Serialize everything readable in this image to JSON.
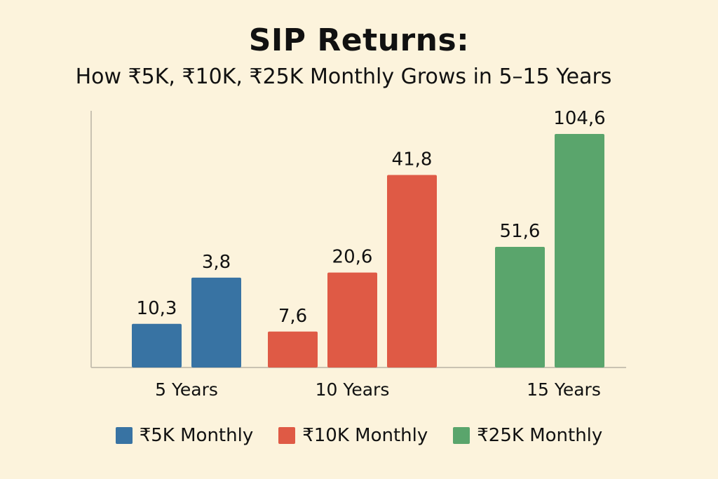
{
  "chart_data": {
    "type": "bar",
    "title": "SIP Returns:",
    "subtitle": "How ₹5K, ₹10K, ₹25K Monthly Grows in 5–15 Years",
    "categories": [
      "5 Years",
      "10 Years",
      "15 Years"
    ],
    "series": [
      {
        "name": "₹5K Monthly",
        "color": "#3873a3"
      },
      {
        "name": "₹10K Monthly",
        "color": "#df5a45"
      },
      {
        "name": "₹25K Monthly",
        "color": "#5aa56c"
      }
    ],
    "bars": [
      {
        "category": "5 Years",
        "series": "₹5K Monthly",
        "value": 17,
        "label": "10,3"
      },
      {
        "category": "5 Years",
        "series": "₹5K Monthly",
        "value": 35,
        "label": "3,8"
      },
      {
        "category": "10 Years",
        "series": "₹10K Monthly",
        "value": 14,
        "label": "7,6"
      },
      {
        "category": "10 Years",
        "series": "₹10K Monthly",
        "value": 37,
        "label": "20,6"
      },
      {
        "category": "10 Years",
        "series": "₹10K Monthly",
        "value": 75,
        "label": "41,8"
      },
      {
        "category": "15 Years",
        "series": "₹25K Monthly",
        "value": 47,
        "label": "51,6"
      },
      {
        "category": "15 Years",
        "series": "₹25K Monthly",
        "value": 91,
        "label": "104,6"
      }
    ],
    "ylim": [
      0,
      100
    ],
    "grid": false,
    "legend_position": "bottom"
  }
}
